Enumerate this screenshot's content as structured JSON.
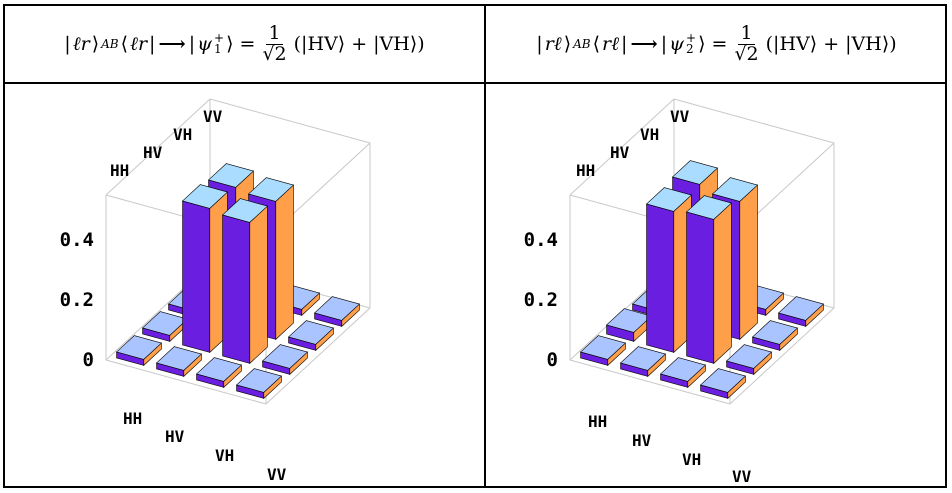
{
  "panels": [
    {
      "header": {
        "ket": "ℓr",
        "ket_sub": "AB",
        "bra": "ℓr",
        "arrow": "⟶",
        "psi": "ψ",
        "psi_sub": "1",
        "psi_sup": "+",
        "frac_num": "1",
        "frac_den": "√2",
        "sum": "(|HV⟩ + |VH⟩)"
      },
      "chart_data": {
        "type": "bar3d",
        "rows": [
          "HH",
          "HV",
          "VH",
          "VV"
        ],
        "cols": [
          "HH",
          "HV",
          "VH",
          "VV"
        ],
        "values": [
          [
            0.03,
            0.01,
            0.01,
            0.01
          ],
          [
            0.01,
            0.47,
            0.46,
            0.02
          ],
          [
            0.02,
            0.48,
            0.47,
            0.01
          ],
          [
            0.01,
            0.02,
            0.02,
            0.01
          ]
        ],
        "zlim": [
          0,
          0.55
        ],
        "zticks": [
          0,
          0.2,
          0.4
        ],
        "ztick_labels": [
          "0",
          "0.2",
          "0.4"
        ]
      }
    },
    {
      "header": {
        "ket": "rℓ",
        "ket_sub": "AB",
        "bra": "rℓ",
        "arrow": "⟶",
        "psi": "ψ",
        "psi_sub": "2",
        "psi_sup": "+",
        "frac_num": "1",
        "frac_den": "√2",
        "sum": "(|HV⟩ + |VH⟩)"
      },
      "chart_data": {
        "type": "bar3d",
        "rows": [
          "HH",
          "HV",
          "VH",
          "VV"
        ],
        "cols": [
          "HH",
          "HV",
          "VH",
          "VV"
        ],
        "values": [
          [
            0.03,
            0.01,
            0.02,
            0.01
          ],
          [
            0.01,
            0.48,
            0.46,
            0.02
          ],
          [
            0.03,
            0.47,
            0.48,
            0.01
          ],
          [
            0.01,
            0.02,
            0.02,
            0.01
          ]
        ],
        "zlim": [
          0,
          0.55
        ],
        "zticks": [
          0,
          0.2,
          0.4
        ],
        "ztick_labels": [
          "0",
          "0.2",
          "0.4"
        ]
      }
    }
  ],
  "colors": {
    "front_face": "#6a1fe0",
    "side_face": "#ff9f4a",
    "top_face": "#a9dcff",
    "small_top": "#aac4ff",
    "box": "#c8c8c8"
  }
}
